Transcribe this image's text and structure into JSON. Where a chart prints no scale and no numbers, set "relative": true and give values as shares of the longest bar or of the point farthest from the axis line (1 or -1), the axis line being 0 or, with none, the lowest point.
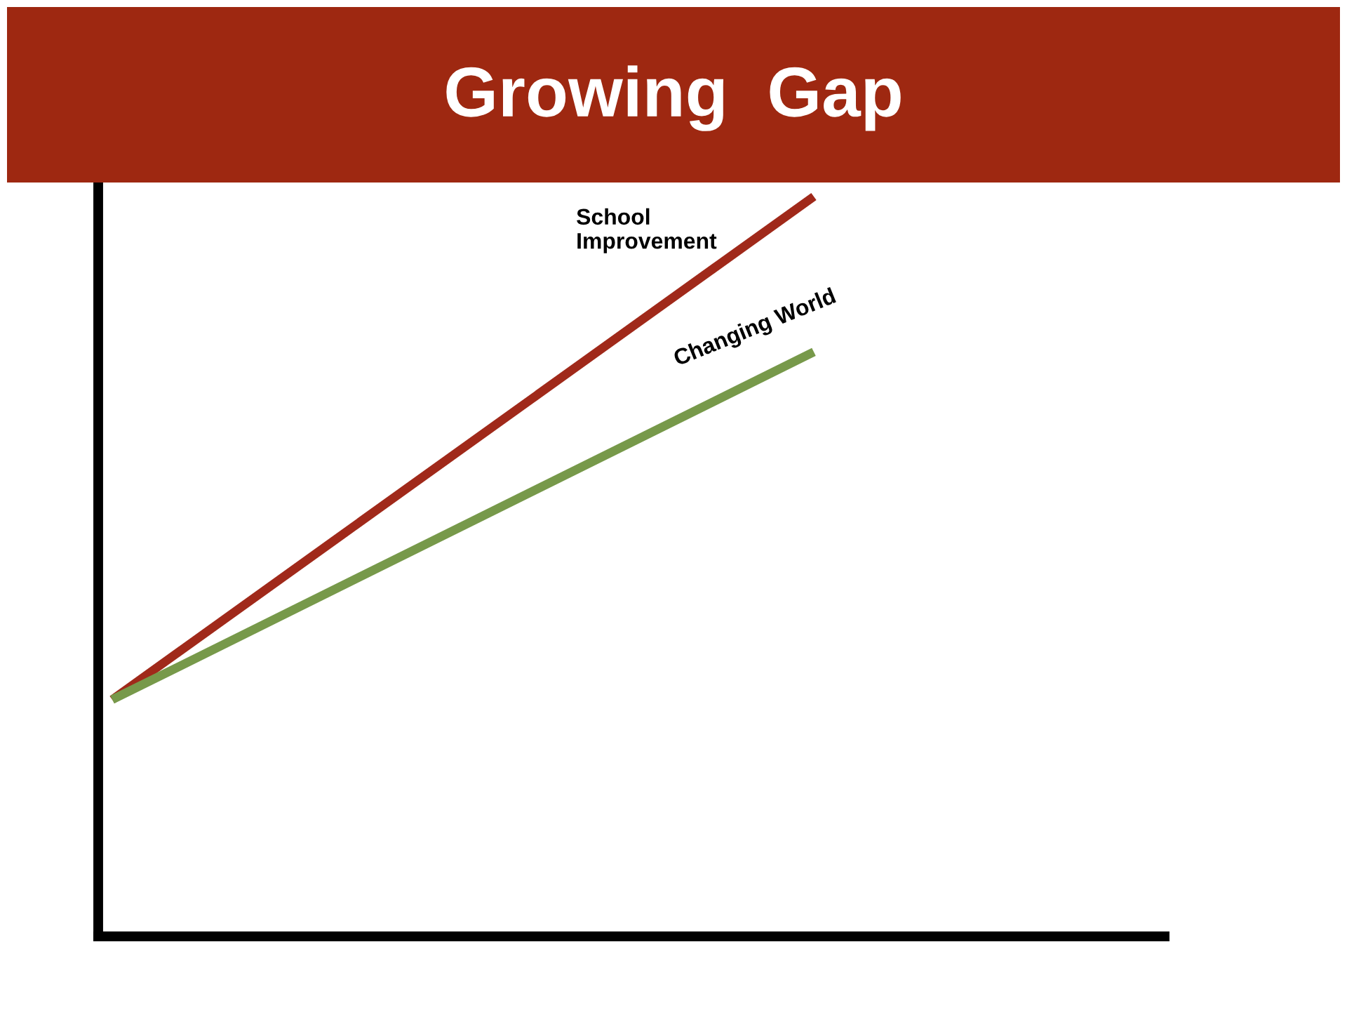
{
  "chart_data": {
    "type": "line",
    "title": "Growing  Gap",
    "relative": true,
    "categories": [
      null,
      null
    ],
    "series": [
      {
        "name": "School Improvement",
        "color": "#a0291a",
        "values": [
          0.32,
          1.0
        ]
      },
      {
        "name": "Changing World",
        "color": "#77994a",
        "values": [
          0.32,
          0.79
        ]
      }
    ],
    "legend": false
  }
}
